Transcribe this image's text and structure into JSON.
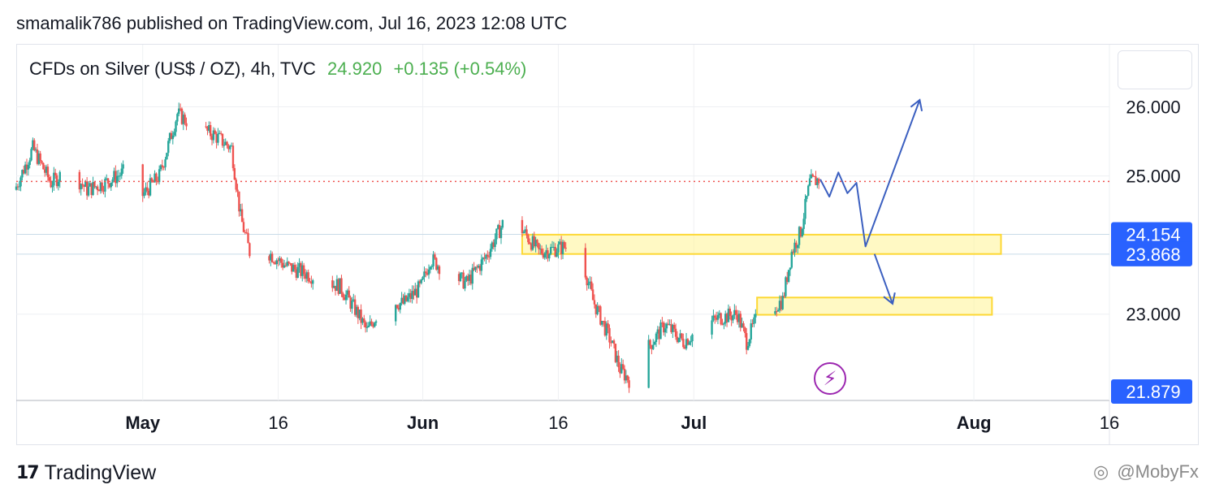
{
  "header": {
    "text": "smamalik786 published on TradingView.com, Jul 16, 2023 12:08 UTC"
  },
  "legend": {
    "symbol": "CFDs on Silver (US$ / OZ), 4h, TVC",
    "last": "24.920",
    "change": "+0.135 (+0.54%)"
  },
  "footer": {
    "logo_text": "TradingView",
    "watermark": "@MobyFx"
  },
  "icons": {
    "logo": "tradingview-logo-icon",
    "lightning": "lightning-icon",
    "watermark": "watermark-icon"
  },
  "colors": {
    "up": "#26a69a",
    "down": "#ef5350",
    "level_badge": "#2962ff",
    "zone_fill": "#fff59d",
    "zone_border": "#fdd835",
    "arrow": "#3b5fc0",
    "last_price_line": "#ef5350",
    "legend_value": "#4caf50"
  },
  "chart_data": {
    "type": "candlestick",
    "interval": "4h",
    "y_ticks": [
      "26.000",
      "25.000",
      "23.000"
    ],
    "x_ticks": [
      "May",
      "16",
      "Jun",
      "16",
      "Jul",
      "Aug",
      "16"
    ],
    "price_labels": [
      "24.154",
      "23.868",
      "21.879"
    ],
    "last_price": 24.92,
    "ylim": [
      21.75,
      26.9
    ],
    "x_range": [
      "2023-04-17",
      "2023-08-16"
    ],
    "series_path": [
      [
        "2023-04-17",
        24.8
      ],
      [
        "2023-04-19",
        25.4
      ],
      [
        "2023-04-21",
        24.9
      ],
      [
        "2023-04-23",
        25.1
      ],
      [
        "2023-04-25",
        24.8
      ],
      [
        "2023-04-27",
        24.9
      ],
      [
        "2023-04-29",
        25.05
      ],
      [
        "2023-05-01",
        24.7
      ],
      [
        "2023-05-03",
        25.0
      ],
      [
        "2023-05-05",
        25.9
      ],
      [
        "2023-05-07",
        25.7
      ],
      [
        "2023-05-09",
        25.6
      ],
      [
        "2023-05-11",
        25.4
      ],
      [
        "2023-05-12",
        24.4
      ],
      [
        "2023-05-13",
        23.9
      ],
      [
        "2023-05-15",
        23.9
      ],
      [
        "2023-05-17",
        23.7
      ],
      [
        "2023-05-19",
        23.6
      ],
      [
        "2023-05-21",
        23.5
      ],
      [
        "2023-05-23",
        23.4
      ],
      [
        "2023-05-25",
        23.0
      ],
      [
        "2023-05-26",
        22.75
      ],
      [
        "2023-05-28",
        23.2
      ],
      [
        "2023-05-30",
        23.15
      ],
      [
        "2023-06-01",
        23.4
      ],
      [
        "2023-06-02",
        23.8
      ],
      [
        "2023-06-04",
        23.6
      ],
      [
        "2023-06-06",
        23.45
      ],
      [
        "2023-06-08",
        23.8
      ],
      [
        "2023-06-10",
        24.3
      ],
      [
        "2023-06-12",
        24.25
      ],
      [
        "2023-06-14",
        23.9
      ],
      [
        "2023-06-16",
        23.95
      ],
      [
        "2023-06-18",
        24.0
      ],
      [
        "2023-06-19",
        23.7
      ],
      [
        "2023-06-20",
        23.2
      ],
      [
        "2023-06-22",
        22.6
      ],
      [
        "2023-06-23",
        22.2
      ],
      [
        "2023-06-24",
        22.05
      ],
      [
        "2023-06-26",
        22.5
      ],
      [
        "2023-06-28",
        22.85
      ],
      [
        "2023-06-30",
        22.6
      ],
      [
        "2023-07-02",
        22.8
      ],
      [
        "2023-07-04",
        22.95
      ],
      [
        "2023-07-06",
        23.0
      ],
      [
        "2023-07-07",
        22.6
      ],
      [
        "2023-07-08",
        22.9
      ],
      [
        "2023-07-10",
        23.1
      ],
      [
        "2023-07-11",
        23.2
      ],
      [
        "2023-07-12",
        23.9
      ],
      [
        "2023-07-13",
        24.2
      ],
      [
        "2023-07-14",
        24.9
      ],
      [
        "2023-07-15",
        24.95
      ]
    ],
    "zones": [
      {
        "from": "2023-06-12",
        "to": "2023-08-04",
        "low": 23.87,
        "high": 24.15
      },
      {
        "from": "2023-07-08",
        "to": "2023-08-03",
        "low": 22.99,
        "high": 23.24
      }
    ],
    "projection_arrows": [
      {
        "points": [
          [
            "2023-07-15",
            24.95
          ],
          [
            "2023-07-16",
            24.7
          ],
          [
            "2023-07-17",
            25.05
          ],
          [
            "2023-07-18",
            24.75
          ],
          [
            "2023-07-19",
            24.9
          ],
          [
            "2023-07-20",
            23.98
          ],
          [
            "2023-07-26",
            26.1
          ]
        ]
      },
      {
        "points": [
          [
            "2023-07-21",
            23.87
          ],
          [
            "2023-07-23",
            23.15
          ]
        ]
      }
    ]
  }
}
